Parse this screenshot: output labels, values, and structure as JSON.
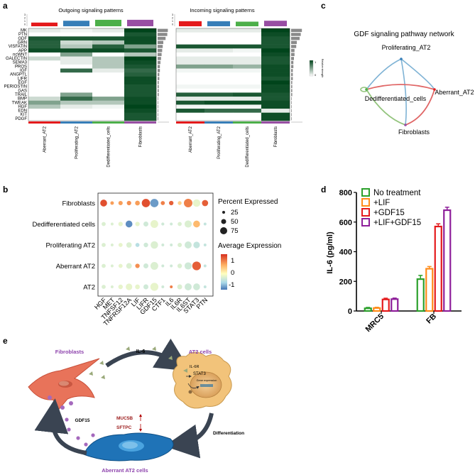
{
  "panel_labels": {
    "a": "a",
    "b": "b",
    "c": "c",
    "d": "d",
    "e": "e"
  },
  "panel_a": {
    "outgoing_title": "Outgoing signaling patterns",
    "incoming_title": "Incoming signaling patterns",
    "legend_title": "Relative strength",
    "legend_ticks": [
      "1",
      "0"
    ],
    "cell_types": [
      "Aberrant_AT2",
      "Proliferating_AT2",
      "Dedifferentiated_cells",
      "Fibroblasts"
    ],
    "cell_colors": [
      "#e41a1c",
      "#377eb8",
      "#4daf4a",
      "#984ea3"
    ],
    "pathways": [
      "MK",
      "PTN",
      "GDF",
      "GRN",
      "VISFATIN",
      "APP",
      "ncWNT",
      "GALECTIN",
      "SEMA3",
      "PROS",
      "IGF",
      "ANGPTL",
      "LIFR",
      "EGF",
      "PERIOSTIN",
      "GAS",
      "TRAIL",
      "BMP",
      "TWEAK",
      "HGF",
      "EDN",
      "KIT",
      "PDGF"
    ],
    "top_bar_ticks": [
      "3",
      "2",
      "1",
      "0"
    ],
    "outgoing_matrix": [
      [
        0.1,
        0.05,
        0.1,
        1
      ],
      [
        0,
        0,
        0,
        0.9
      ],
      [
        0.9,
        0.9,
        0.9,
        0.95
      ],
      [
        0.85,
        0.2,
        0.3,
        0.95
      ],
      [
        0.85,
        0.3,
        0.85,
        0.5
      ],
      [
        0.95,
        0.95,
        0.95,
        0.9
      ],
      [
        0,
        0.5,
        0,
        0.3
      ],
      [
        0.2,
        0.1,
        0.3,
        1
      ],
      [
        0,
        0.1,
        0.3,
        0.95
      ],
      [
        0,
        0,
        0.3,
        0.9
      ],
      [
        0,
        0.8,
        0.1,
        0.8
      ],
      [
        0,
        0,
        0,
        0.85
      ],
      [
        0,
        0,
        0,
        0.95
      ],
      [
        0,
        0,
        0,
        0.95
      ],
      [
        0,
        0,
        0,
        0.9
      ],
      [
        0,
        0,
        0,
        0.9
      ],
      [
        0,
        0.5,
        0,
        0.9
      ],
      [
        0.2,
        0.8,
        0.5,
        0.95
      ],
      [
        0.5,
        0.3,
        0.3,
        0.95
      ],
      [
        0.3,
        0.1,
        0.05,
        1
      ],
      [
        0,
        0,
        0,
        0.95
      ],
      [
        0,
        0,
        0,
        0.9
      ],
      [
        0,
        0,
        0,
        0.9
      ]
    ],
    "incoming_matrix": [
      [
        0.1,
        0.1,
        0.1,
        1
      ],
      [
        0,
        0,
        0,
        0.95
      ],
      [
        0,
        0,
        0,
        0.9
      ],
      [
        0,
        0,
        0,
        0.9
      ],
      [
        0.9,
        0.9,
        0.9,
        0.9
      ],
      [
        0.1,
        0.1,
        0.05,
        1
      ],
      [
        0,
        0,
        0,
        0.95
      ],
      [
        0.1,
        0.1,
        0.1,
        0.9
      ],
      [
        0.1,
        0.1,
        0.1,
        0.9
      ],
      [
        0.5,
        0.5,
        0.4,
        0.95
      ],
      [
        0.05,
        0.05,
        0.05,
        0.95
      ],
      [
        0,
        0,
        0,
        0.95
      ],
      [
        0,
        0,
        0,
        0.9
      ],
      [
        0,
        0,
        0,
        1
      ],
      [
        0.05,
        0.05,
        0.05,
        0.95
      ],
      [
        0,
        0,
        0,
        0.95
      ],
      [
        0.85,
        0.85,
        0.9,
        0.9
      ],
      [
        0.1,
        0.1,
        0.1,
        0.9
      ],
      [
        0.9,
        0.95,
        0.95,
        0.95
      ],
      [
        0.05,
        0.05,
        0.05,
        0.95
      ],
      [
        0.9,
        0.8,
        0.8,
        0.1
      ],
      [
        0,
        0,
        0,
        0.95
      ],
      [
        0,
        0,
        0,
        0.95
      ]
    ],
    "outgoing_top": [
      0.4,
      0.6,
      0.7,
      0.7
    ],
    "incoming_top": [
      0.55,
      0.55,
      0.5,
      0.6
    ],
    "outgoing_side": [
      0.9,
      0.85,
      0.7,
      0.5,
      0.45,
      0.4,
      0.35,
      0.3,
      0.25,
      0.2,
      0.2,
      0.15,
      0.15,
      0.1,
      0.1,
      0.1,
      0.1,
      0.05,
      0.05,
      0.05,
      0.05,
      0.05,
      0.05
    ],
    "incoming_side": [
      0.95,
      0.85,
      0.75,
      0.5,
      0.45,
      0.3,
      0.3,
      0.25,
      0.2,
      0.2,
      0.15,
      0.15,
      0.15,
      0.1,
      0.1,
      0.1,
      0.1,
      0.05,
      0.05,
      0.05,
      0.05,
      0.05,
      0.05
    ]
  },
  "panel_b": {
    "rows": [
      "Fibroblasts",
      "Dedifferentiated cells",
      "Proliferating AT2",
      "Aberrant AT2",
      "AT2"
    ],
    "genes": [
      "HGF",
      "MET",
      "TNFSF12",
      "TNFRSF12A",
      "LIF",
      "LIFR",
      "GDF15",
      "CTF1",
      "IL6",
      "IL6R",
      "IL6ST",
      "STAT3",
      "PTN"
    ],
    "size_legend_title": "Percent Expressed",
    "size_legend_values": [
      25,
      50,
      75
    ],
    "color_legend_title": "Average Expression",
    "color_legend_ticks": [
      "1",
      "0",
      "-1"
    ],
    "pct": [
      [
        45,
        8,
        14,
        15,
        18,
        70,
        70,
        12,
        15,
        10,
        75,
        55,
        35
      ],
      [
        12,
        4,
        15,
        45,
        15,
        20,
        60,
        5,
        4,
        12,
        50,
        45,
        4
      ],
      [
        12,
        4,
        12,
        25,
        12,
        16,
        55,
        4,
        4,
        14,
        48,
        40,
        4
      ],
      [
        12,
        4,
        12,
        28,
        15,
        20,
        60,
        4,
        4,
        16,
        50,
        78,
        4
      ],
      [
        12,
        4,
        16,
        40,
        18,
        20,
        65,
        4,
        4,
        20,
        48,
        45,
        4
      ]
    ],
    "avg": [
      [
        1.3,
        0.8,
        0.8,
        0.9,
        0.8,
        1.3,
        -1.2,
        1.0,
        1.2,
        0.4,
        1.0,
        -0.2,
        1.2
      ],
      [
        -0.3,
        -0.3,
        -0.2,
        -1.3,
        -0.2,
        -0.4,
        -0.2,
        -0.4,
        -0.4,
        -0.3,
        -0.3,
        0.6,
        -0.5
      ],
      [
        -0.3,
        -0.3,
        -0.2,
        -0.3,
        -0.6,
        -0.4,
        -0.3,
        -0.4,
        -0.4,
        -0.3,
        -0.4,
        -0.5,
        -0.5
      ],
      [
        -0.3,
        -0.3,
        -0.2,
        -0.3,
        0.9,
        -0.4,
        -0.3,
        -0.4,
        -0.4,
        -0.3,
        -0.4,
        1.2,
        -0.5
      ],
      [
        -0.3,
        -0.3,
        -0.2,
        -0.2,
        -0.2,
        -0.4,
        -0.2,
        -0.4,
        1.0,
        -0.3,
        -0.4,
        -0.4,
        -0.5
      ]
    ]
  },
  "panel_c": {
    "title": "GDF signaling pathway network",
    "nodes": [
      "Proliferating_AT2",
      "Aberrant_AT2",
      "Dedifferentiated_cells",
      "Fibroblasts"
    ]
  },
  "panel_d": {
    "chart_data": {
      "type": "bar",
      "ylabel": "IL-6 (pg/ml)",
      "ylim": [
        0,
        800
      ],
      "yticks": [
        "0",
        "200",
        "400",
        "600",
        "800"
      ],
      "categories": [
        "MRC5",
        "FB"
      ],
      "series": [
        {
          "name": "No treatment",
          "values": [
            18,
            215
          ],
          "errors": [
            6,
            25
          ],
          "color": "#2ca02c"
        },
        {
          "name": "+LIF",
          "values": [
            20,
            285
          ],
          "errors": [
            5,
            15
          ],
          "color": "#ff8c1a"
        },
        {
          "name": "+GDF15",
          "values": [
            78,
            570
          ],
          "errors": [
            8,
            18
          ],
          "color": "#e41a1c"
        },
        {
          "name": "+LIF+GDF15",
          "values": [
            80,
            680
          ],
          "errors": [
            7,
            20
          ],
          "color": "#8e1f9a"
        }
      ],
      "legend": "top-left"
    }
  },
  "panel_e": {
    "fibroblasts": "Fibroblasts",
    "at2_cells": "AT2 cells",
    "aberrant": "Aberrant AT2 cells",
    "il6": "IL-6",
    "il6r": "IL-6R",
    "stat3": "STAT3",
    "gene_expression": "Gene expression",
    "gdf15": "GDF15",
    "muc5b": "MUC5B",
    "sftpc": "SFTPC",
    "differentiation": "Differentiation"
  }
}
